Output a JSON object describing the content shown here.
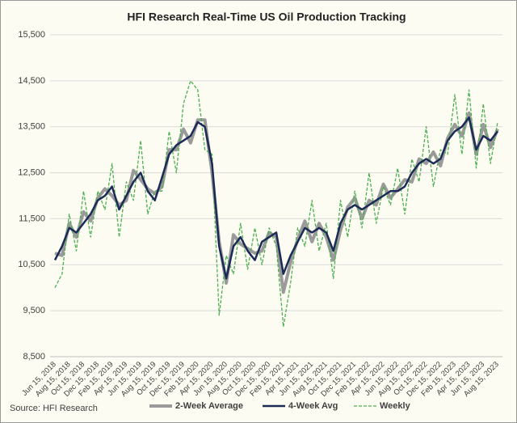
{
  "chart_data": {
    "type": "line",
    "title": "HFI Research Real-Time US Oil Production Tracking",
    "source": "Source: HFI Research",
    "categories": [
      "Jun 15, 2018",
      null,
      "Aug 15, 2018",
      null,
      "Oct 15, 2018",
      null,
      "Dec 15, 2018",
      null,
      "Feb 15, 2019",
      null,
      "Apr 15, 2019",
      null,
      "Jun 15, 2019",
      null,
      "Aug 15, 2019",
      null,
      "Oct 15, 2019",
      null,
      "Dec 15, 2019",
      null,
      "Feb 15, 2020",
      null,
      "Apr 15, 2020",
      null,
      "Jun 15, 2020",
      null,
      "Aug 15, 2020",
      null,
      "Oct 15, 2020",
      null,
      "Dec 15, 2020",
      null,
      "Feb 15, 2021",
      null,
      "Apr 15, 2021",
      null,
      "Jun 15, 2021",
      null,
      "Aug 15, 2021",
      null,
      "Oct 15, 2021",
      null,
      "Dec 15, 2021",
      null,
      "Feb 15, 2022",
      null,
      "Apr 15, 2022",
      null,
      "Jun 15, 2022",
      null,
      "Aug 15, 2022",
      null,
      "Oct 15, 2022",
      null,
      "Dec 15, 2022",
      null,
      "Feb 15, 2023",
      null,
      "Apr 15, 2023",
      null,
      "Jun 15, 2023",
      null,
      "Aug 15, 2023"
    ],
    "series": [
      {
        "name": "2-Week Average",
        "color": "#9a9a9a",
        "style": "solid",
        "width": 4,
        "values": [
          10750,
          10700,
          11400,
          11100,
          11650,
          11450,
          11950,
          12150,
          12000,
          11800,
          11900,
          12550,
          12350,
          12150,
          12050,
          12200,
          13000,
          13000,
          13450,
          13150,
          13650,
          13650,
          12500,
          11000,
          10100,
          11150,
          10950,
          10850,
          10750,
          10800,
          11200,
          11100,
          9900,
          10550,
          11050,
          11450,
          11000,
          11400,
          11100,
          10600,
          11250,
          11750,
          11950,
          11500,
          11900,
          11800,
          12250,
          11950,
          12150,
          12350,
          12300,
          12800,
          12700,
          12950,
          12650,
          13250,
          13550,
          13300,
          13800,
          12900,
          13550,
          13050,
          13450
        ]
      },
      {
        "name": "4-Week Avg",
        "color": "#1c2a57",
        "style": "solid",
        "width": 2.5,
        "values": [
          10600,
          10900,
          11300,
          11200,
          11400,
          11600,
          11900,
          12000,
          12200,
          11700,
          12000,
          12300,
          12500,
          12100,
          11900,
          12400,
          12900,
          13100,
          13200,
          13300,
          13600,
          13500,
          12700,
          10900,
          10200,
          10900,
          11100,
          10800,
          10600,
          11000,
          11100,
          11200,
          10300,
          10700,
          11000,
          11300,
          11200,
          11300,
          11200,
          10800,
          11400,
          11700,
          11800,
          11700,
          11800,
          11900,
          12000,
          12100,
          12100,
          12200,
          12500,
          12700,
          12800,
          12700,
          12800,
          13200,
          13400,
          13500,
          13700,
          13000,
          13300,
          13200,
          13400
        ]
      },
      {
        "name": "Weekly",
        "color": "#4caf50",
        "style": "dashed",
        "width": 1.3,
        "values": [
          10000,
          10300,
          11600,
          10800,
          12100,
          11100,
          12100,
          11700,
          12700,
          11100,
          12300,
          11900,
          13200,
          11600,
          12100,
          12100,
          13400,
          12500,
          14000,
          14500,
          14300,
          13000,
          12900,
          9400,
          10700,
          10300,
          11400,
          10400,
          11300,
          10500,
          11300,
          10900,
          9150,
          10100,
          11300,
          10900,
          11900,
          10800,
          11400,
          10200,
          11900,
          11100,
          12100,
          11300,
          12500,
          11400,
          12200,
          11800,
          12600,
          11600,
          12800,
          12300,
          13500,
          12200,
          13000,
          12900,
          14200,
          12900,
          14300,
          12600,
          14000,
          12700,
          13600
        ]
      }
    ],
    "ylim": [
      8500,
      15500
    ],
    "yticks": [
      {
        "value": 8500,
        "label": "8,500"
      },
      {
        "value": 9500,
        "label": "9,500"
      },
      {
        "value": 10500,
        "label": "10,500"
      },
      {
        "value": 11500,
        "label": "11,500"
      },
      {
        "value": 12500,
        "label": "12,500"
      },
      {
        "value": 13500,
        "label": "13,500"
      },
      {
        "value": 14500,
        "label": "14,500"
      },
      {
        "value": 15500,
        "label": "15,500"
      }
    ],
    "grid": true,
    "legend": "bottom"
  }
}
